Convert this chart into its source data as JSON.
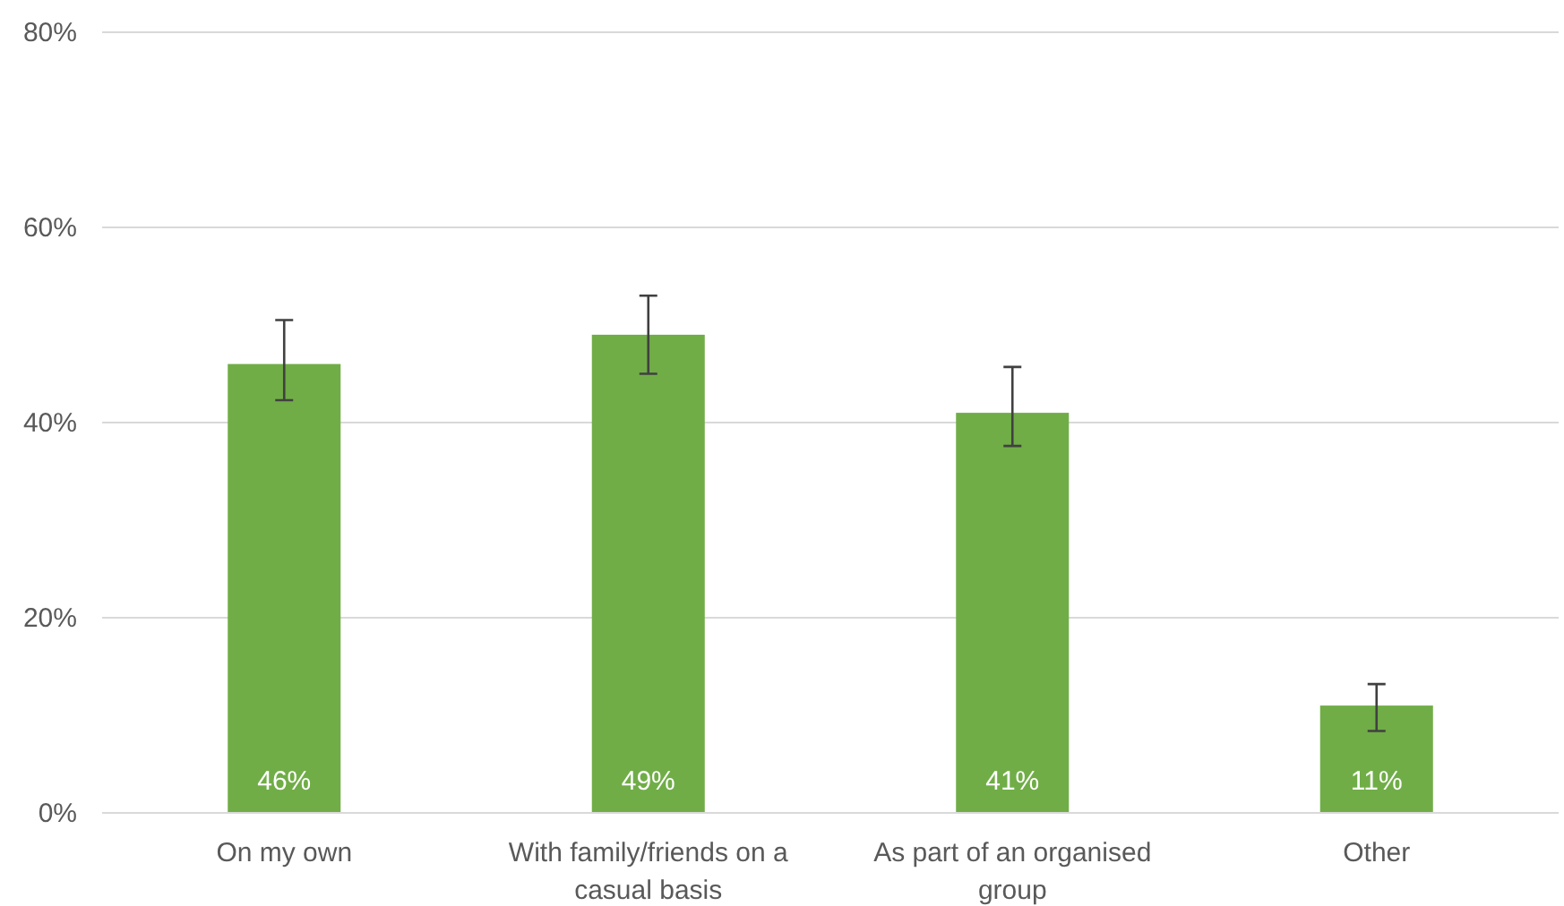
{
  "chart_data": {
    "type": "bar",
    "categories": [
      "On my own",
      "With family/friends on a casual basis",
      "As part of an organised group",
      "Other"
    ],
    "values": [
      46,
      49,
      41,
      11
    ],
    "color": "#70ad47",
    "errors": [
      [
        42.3,
        50.5
      ],
      [
        45,
        53
      ],
      [
        37.6,
        45.7
      ],
      [
        8.4,
        13.2
      ]
    ],
    "value_labels": [
      "46%",
      "49%",
      "41%",
      "11%"
    ],
    "ylim": [
      0,
      80
    ],
    "yticks": [
      {
        "value": 0,
        "label": "0%"
      },
      {
        "value": 20,
        "label": "20%"
      },
      {
        "value": 40,
        "label": "40%"
      },
      {
        "value": 60,
        "label": "60%"
      },
      {
        "value": 80,
        "label": "80%"
      }
    ],
    "grid": "y"
  }
}
